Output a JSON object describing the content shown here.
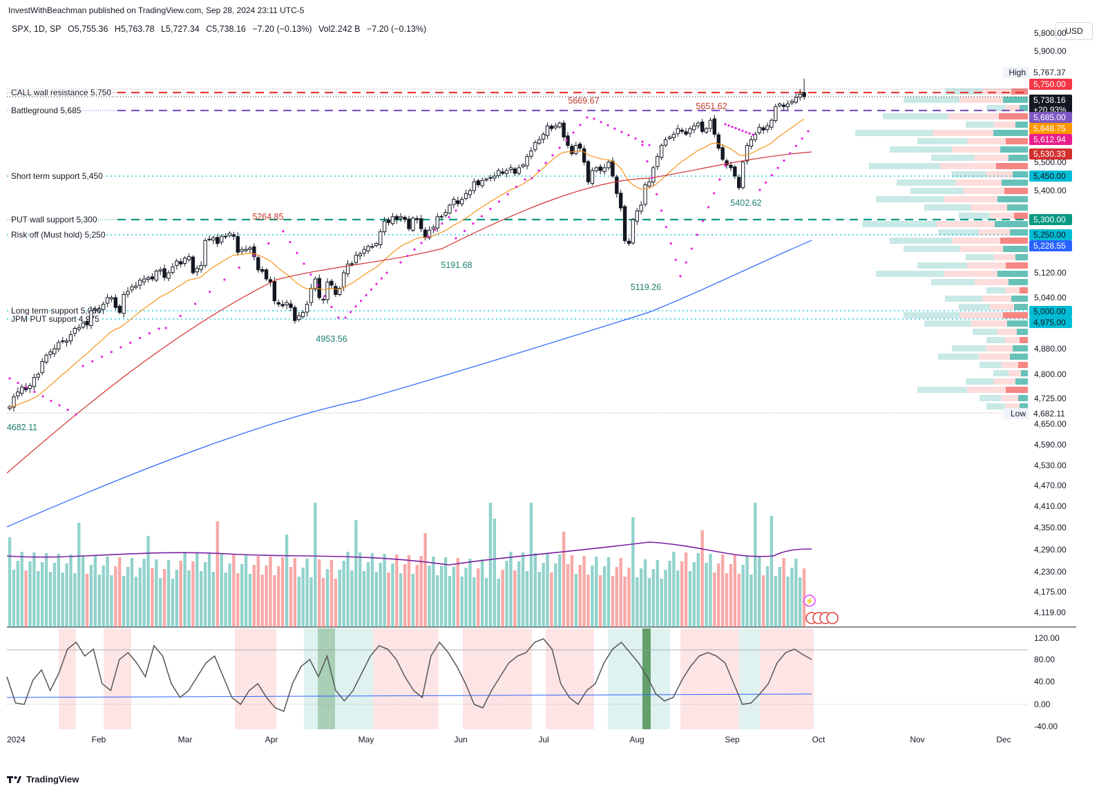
{
  "header": {
    "publisher": "InvestWithBeachman published on TradingView.com, Sep 28, 2024 23:11 UTC-5"
  },
  "legend": {
    "symbol": "SPX, 1D, SP",
    "open": "O5,755.36",
    "high": "H5,763.78",
    "low": "L5,727.34",
    "close": "C5,738.16",
    "change": "−7.20 (−0.13%)",
    "vol": "Vol2.242 B",
    "vol_change": "−7.20 (−0.13%)"
  },
  "currency": "USD",
  "footer": {
    "brand": "TradingView"
  },
  "colors": {
    "up": "#26a69a",
    "down": "#ef5350",
    "call": "#e53935",
    "battle": "#7e57c2",
    "put": "#089981",
    "support": "#00bcd4",
    "ema20": "#f7931a",
    "sma50": "#d32f2f",
    "sma200": "#2962ff",
    "psar": "#e91ee0"
  },
  "chart_data": [
    {
      "type": "candlestick",
      "title": "SPX, 1D, SP",
      "x_axis_labels": [
        "2024",
        "Feb",
        "Mar",
        "Apr",
        "May",
        "Jun",
        "Jul",
        "Aug",
        "Sep",
        "Oct",
        "Nov",
        "Dec"
      ],
      "y_axis_ticks": [
        "5,900.00",
        "5,800.00",
        "5,500.00",
        "5,400.00",
        "5,120.00",
        "5,040.00",
        "4,880.00",
        "4,800.00",
        "4,725.00",
        "4,650.00",
        "4,590.00",
        "4,530.00",
        "4,470.00",
        "4,410.00",
        "4,350.00",
        "4,290.00",
        "4,230.00",
        "4,175.00",
        "4,119.00"
      ],
      "levels": [
        {
          "label": "CALL wall resistance 5,750",
          "value": 5750,
          "style": "dashed",
          "color": "#e53935"
        },
        {
          "label": "Battleground 5,685",
          "value": 5685,
          "style": "dashed",
          "color": "#7e57c2"
        },
        {
          "label": "Short term support 5,450",
          "value": 5450,
          "style": "dotted",
          "color": "#00bcd4"
        },
        {
          "label": "PUT wall support 5,300",
          "value": 5300,
          "style": "dashed",
          "color": "#089981"
        },
        {
          "label": "Risk off (Must hold) 5,250",
          "value": 5250,
          "style": "dotted",
          "color": "#00bcd4"
        },
        {
          "label": "Long term support 5,000",
          "value": 5000,
          "style": "dotted",
          "color": "#00bcd4"
        },
        {
          "label": "JPM PUT support 4,975",
          "value": 4975,
          "style": "dotted",
          "color": "#00bcd4"
        }
      ],
      "annotations": [
        {
          "text": "5669.67",
          "value": 5669.67,
          "kind": "high"
        },
        {
          "text": "5651.62",
          "value": 5651.62,
          "kind": "high"
        },
        {
          "text": "5264.85",
          "value": 5264.85,
          "kind": "high"
        },
        {
          "text": "5191.68",
          "value": 5191.68,
          "kind": "low"
        },
        {
          "text": "5119.26",
          "value": 5119.26,
          "kind": "low"
        },
        {
          "text": "5402.62",
          "value": 5402.62,
          "kind": "low"
        },
        {
          "text": "4953.56",
          "value": 4953.56,
          "kind": "low"
        },
        {
          "text": "4682.11",
          "value": 4682.11,
          "kind": "low"
        }
      ],
      "price_tags": [
        {
          "text": "High",
          "value": "5,767.37",
          "bg": "#ffffff",
          "fg": "#131722",
          "tagbg": "#f0f3fa"
        },
        {
          "text": "",
          "value": "5,750.00",
          "bg": "#f23645",
          "fg": "#ffffff"
        },
        {
          "text": "",
          "value": "5,738.16",
          "sub": "+20.93%",
          "bg": "#131722",
          "fg": "#ffffff"
        },
        {
          "text": "",
          "value": "5,685.00",
          "bg": "#7e57c2",
          "fg": "#ffffff"
        },
        {
          "text": "",
          "value": "5,648.75",
          "bg": "#ff9800",
          "fg": "#ffffff"
        },
        {
          "text": "",
          "value": "5,612.94",
          "bg": "#e91e8c",
          "fg": "#ffffff"
        },
        {
          "text": "",
          "value": "5,530.33",
          "bg": "#d32f2f",
          "fg": "#ffffff"
        },
        {
          "text": "",
          "value": "5,450.00",
          "bg": "#00bcd4",
          "fg": "#131722"
        },
        {
          "text": "",
          "value": "5,300.00",
          "bg": "#089981",
          "fg": "#ffffff"
        },
        {
          "text": "",
          "value": "5,250.00",
          "bg": "#00bcd4",
          "fg": "#131722"
        },
        {
          "text": "",
          "value": "5,228.55",
          "bg": "#2962ff",
          "fg": "#ffffff"
        },
        {
          "text": "",
          "value": "5,000.00",
          "bg": "#00bcd4",
          "fg": "#131722"
        },
        {
          "text": "",
          "value": "4,975.00",
          "bg": "#00bcd4",
          "fg": "#131722"
        },
        {
          "text": "Low",
          "value": "4,682.11",
          "bg": "#ffffff",
          "fg": "#131722",
          "tagbg": "#f0f3fa"
        }
      ],
      "close_series": [
        4700,
        4730,
        4745,
        4760,
        4752,
        4765,
        4790,
        4800,
        4840,
        4860,
        4870,
        4880,
        4900,
        4905,
        4905,
        4925,
        4945,
        4948,
        4962,
        4956,
        5000,
        5005,
        5005,
        5020,
        5040,
        5040,
        5010,
        4995,
        5050,
        5060,
        5075,
        5078,
        5096,
        5100,
        5104,
        5100,
        5126,
        5130,
        5105,
        5120,
        5140,
        5160,
        5150,
        5170,
        5175,
        5120,
        5135,
        5145,
        5230,
        5235,
        5240,
        5220,
        5245,
        5245,
        5255,
        5245,
        5190,
        5200,
        5200,
        5205,
        5175,
        5130,
        5125,
        5100,
        5090,
        5030,
        5020,
        5015,
        5025,
        5010,
        4970,
        4985,
        4995,
        5020,
        5070,
        5100,
        5040,
        5035,
        5090,
        5080,
        5050,
        5070,
        5120,
        5150,
        5150,
        5180,
        5185,
        5200,
        5210,
        5210,
        5220,
        5260,
        5295,
        5290,
        5310,
        5300,
        5310,
        5300,
        5270,
        5305,
        5300,
        5270,
        5240,
        5265,
        5275,
        5310,
        5310,
        5325,
        5350,
        5370,
        5355,
        5370,
        5390,
        5400,
        5430,
        5420,
        5435,
        5440,
        5445,
        5450,
        5470,
        5460,
        5470,
        5480,
        5460,
        5480,
        5490,
        5520,
        5540,
        5570,
        5580,
        5600,
        5630,
        5620,
        5630,
        5640,
        5590,
        5560,
        5530,
        5560,
        5550,
        5500,
        5430,
        5470,
        5480,
        5470,
        5480,
        5500,
        5450,
        5390,
        5340,
        5230,
        5220,
        5300,
        5330,
        5350,
        5420,
        5430,
        5480,
        5520,
        5560,
        5580,
        5590,
        5600,
        5620,
        5610,
        5600,
        5620,
        5630,
        5640,
        5610,
        5620,
        5650,
        5600,
        5550,
        5510,
        5490,
        5480,
        5450,
        5410,
        5500,
        5560,
        5580,
        5600,
        5625,
        5615,
        5630,
        5650,
        5700,
        5710,
        5700,
        5710,
        5720,
        5735,
        5745,
        5738
      ],
      "volume_note": "Volume bars with MA (purple)",
      "oscillator": {
        "y_ticks": [
          "120.00",
          "80.00",
          "40.00",
          "0.00",
          "-40.00"
        ],
        "ylim": [
          -40,
          120
        ]
      }
    }
  ]
}
